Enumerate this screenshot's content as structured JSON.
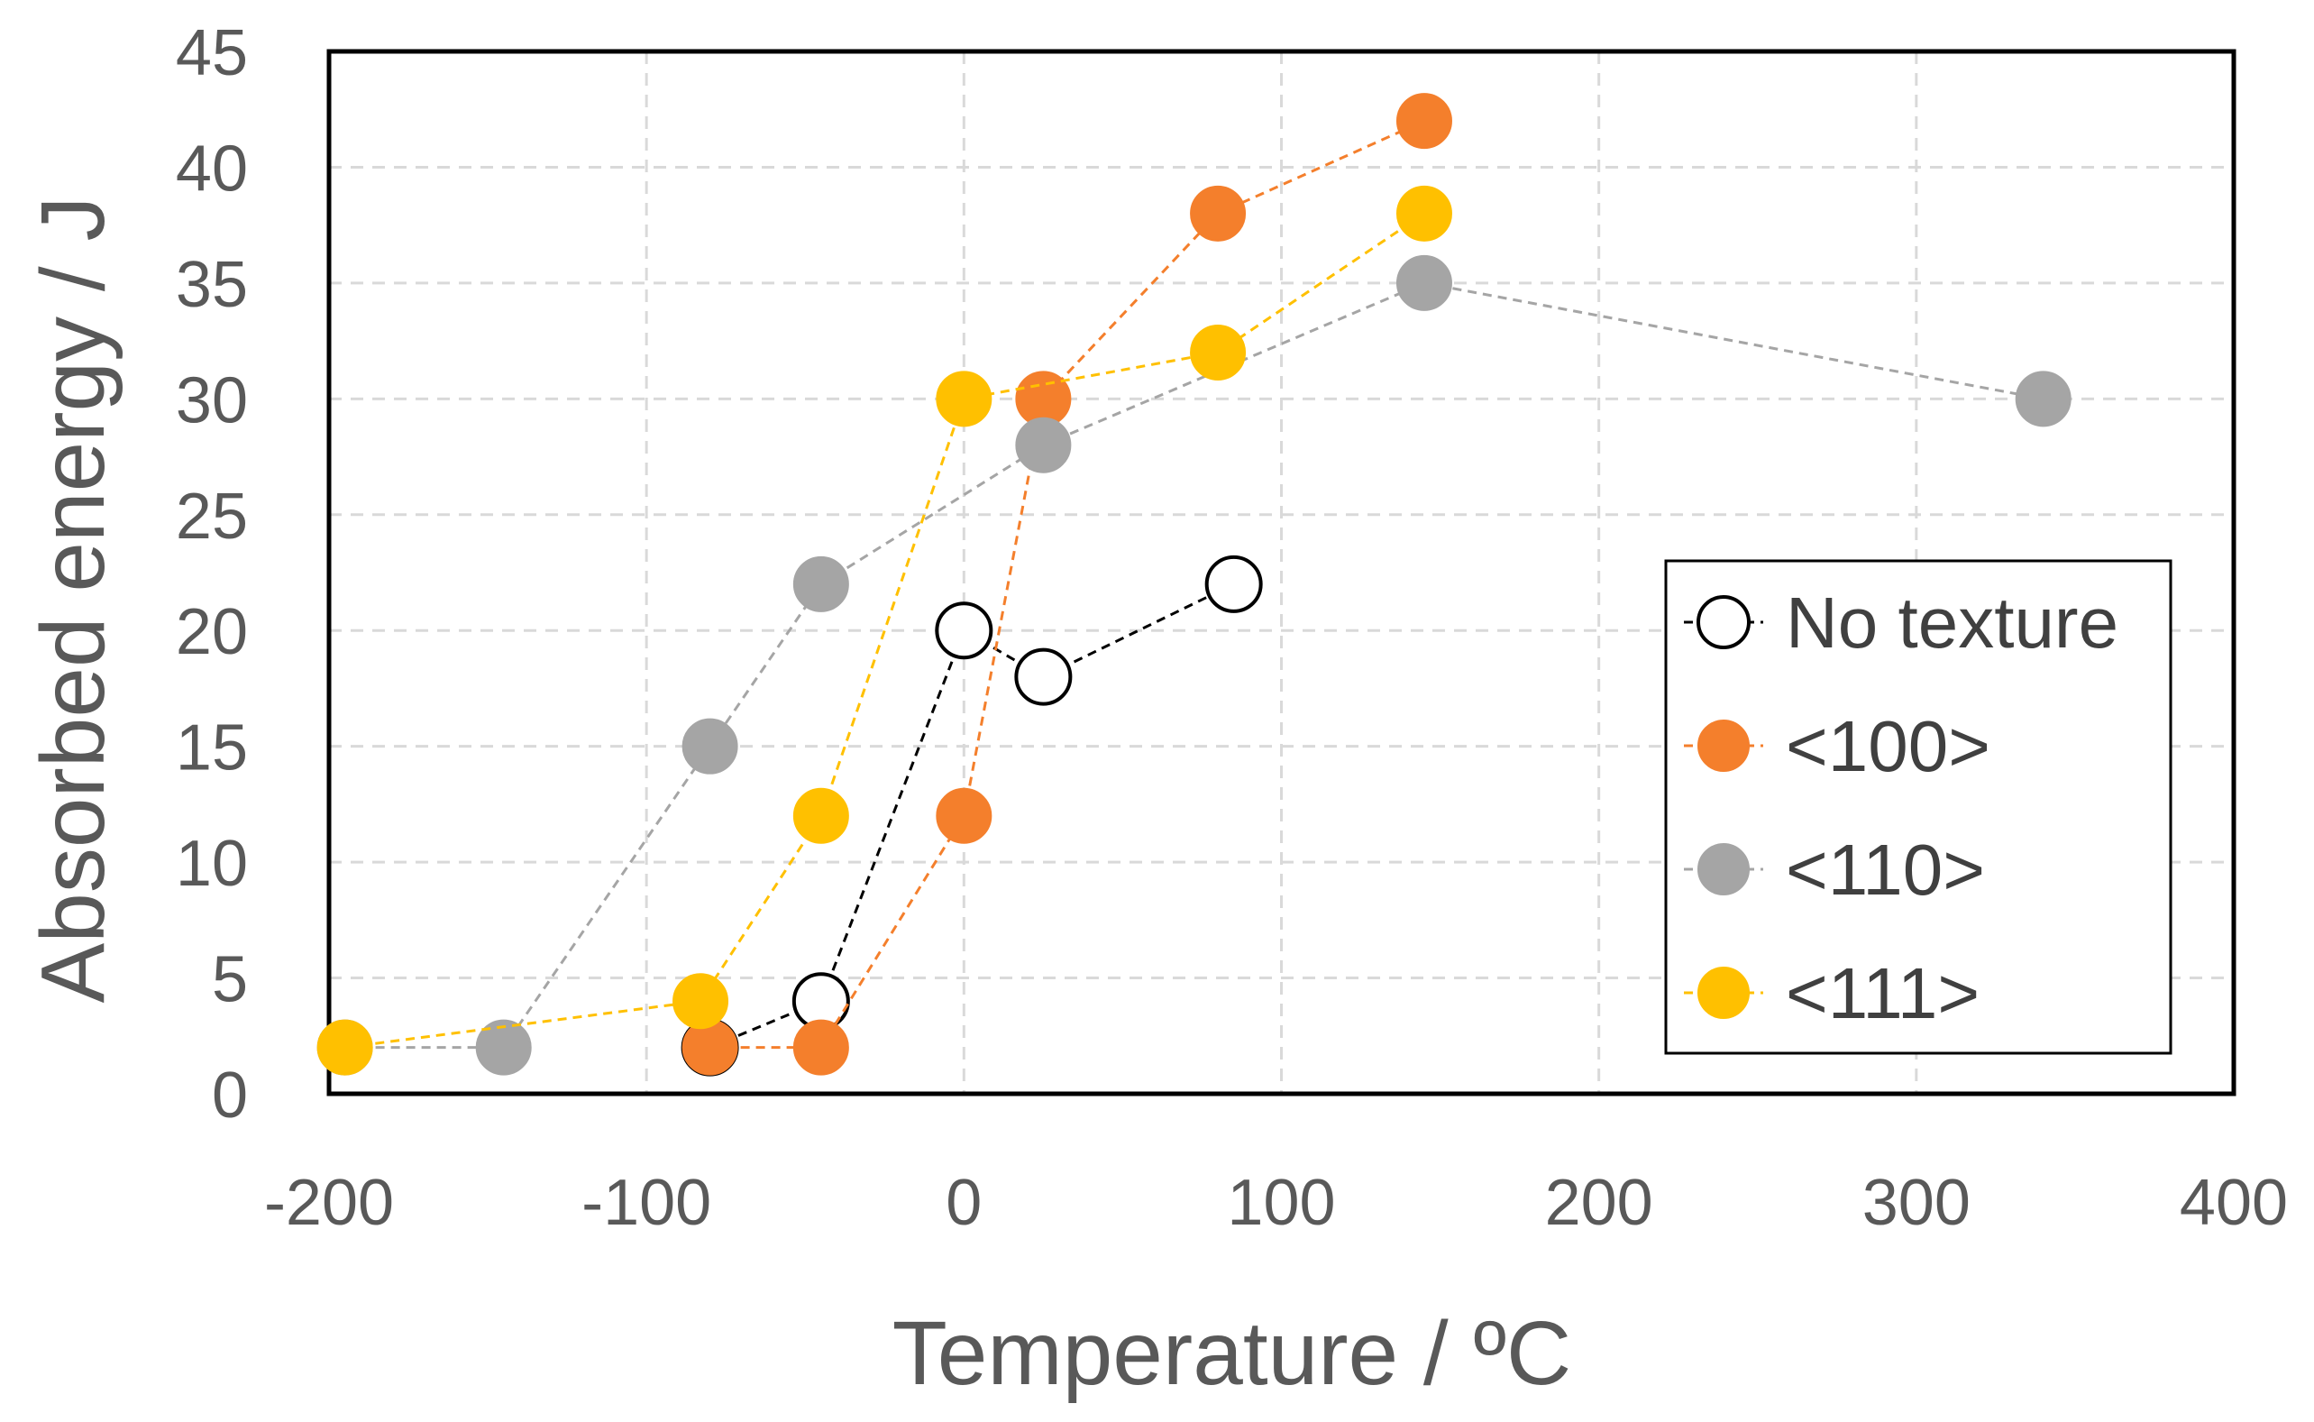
{
  "chart_data": {
    "type": "line",
    "xlabel": "Temperature / ºC",
    "ylabel": "Absorbed energy / J",
    "xlim": [
      -200,
      400
    ],
    "ylim": [
      0,
      45
    ],
    "xticks": [
      -200,
      -100,
      0,
      100,
      200,
      300,
      400
    ],
    "yticks": [
      0,
      5,
      10,
      15,
      20,
      25,
      30,
      35,
      40,
      45
    ],
    "grid": true,
    "legend_position": "right",
    "series": [
      {
        "name": "No texture",
        "color": "#000000",
        "marker": "open-circle",
        "x": [
          -80,
          -45,
          0,
          25,
          85
        ],
        "y": [
          2,
          4,
          20,
          18,
          22
        ]
      },
      {
        "name": "<100>",
        "color": "#F47F2C",
        "marker": "filled-circle",
        "x": [
          -80,
          -45,
          0,
          25,
          80,
          145
        ],
        "y": [
          2,
          2,
          12,
          30,
          38,
          42
        ]
      },
      {
        "name": "<110>",
        "color": "#A5A5A5",
        "marker": "filled-circle",
        "x": [
          -195,
          -145,
          -80,
          -45,
          25,
          145,
          340
        ],
        "y": [
          2,
          2,
          15,
          22,
          28,
          35,
          30
        ]
      },
      {
        "name": "<111>",
        "color": "#FFC000",
        "marker": "filled-circle",
        "x": [
          -195,
          -83,
          -45,
          0,
          80,
          145
        ],
        "y": [
          2,
          4,
          12,
          30,
          32,
          38
        ]
      }
    ]
  }
}
